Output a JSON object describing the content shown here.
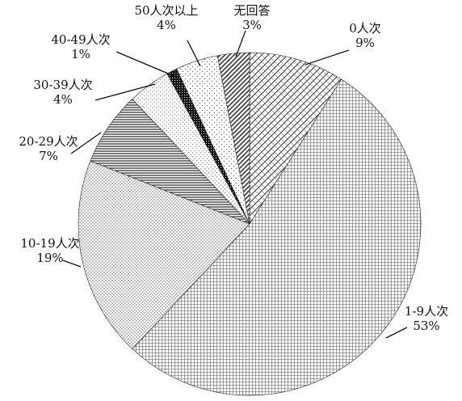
{
  "chart_data": {
    "type": "pie",
    "title": "",
    "start": "top, clockwise",
    "slices": [
      {
        "label": "0人次",
        "value": 9,
        "pct_label": "9%",
        "pattern": "brick-hatch",
        "label_pos": "top-right",
        "inside": false
      },
      {
        "label": "1-9人次",
        "value": 53,
        "pct_label": "53%",
        "pattern": "fine-grid",
        "label_pos": "bottom-right",
        "inside": false
      },
      {
        "label": "10-19人次",
        "value": 19,
        "pct_label": "19%",
        "pattern": "dense-dots",
        "label_pos": "left",
        "inside": false
      },
      {
        "label": "20-29人次",
        "value": 7,
        "pct_label": "7%",
        "pattern": "horizontal-lines",
        "label_pos": "left",
        "inside": false
      },
      {
        "label": "30-39人次",
        "value": 4,
        "pct_label": "4%",
        "pattern": "light-dots",
        "label_pos": "upper-left",
        "inside": false
      },
      {
        "label": "40-49人次",
        "value": 1,
        "pct_label": "1%",
        "pattern": "black-checker",
        "label_pos": "upper-left",
        "inside": false
      },
      {
        "label": "50人次以上",
        "value": 4,
        "pct_label": "4%",
        "pattern": "sparse-dots",
        "label_pos": "top",
        "inside": false
      },
      {
        "label": "无回答",
        "value": 3,
        "pct_label": "3%",
        "pattern": "diagonal-lines",
        "label_pos": "top",
        "inside": false
      }
    ]
  }
}
